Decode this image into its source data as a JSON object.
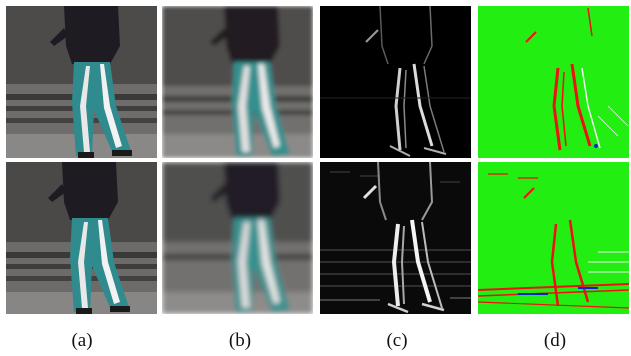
{
  "figure": {
    "columns": [
      {
        "label": "(a)",
        "content": "photo"
      },
      {
        "label": "(b)",
        "content": "blurred-photo"
      },
      {
        "label": "(c)",
        "content": "edge-map"
      },
      {
        "label": "(d)",
        "content": "color-map"
      }
    ],
    "colors": {
      "pants": "#2f8b8e",
      "jacket": "#1e1c22",
      "ground": "#7c7a78",
      "wall": "#4a4a48",
      "green": "#22ee11",
      "red": "#ee1111",
      "blue": "#1122cc"
    }
  }
}
